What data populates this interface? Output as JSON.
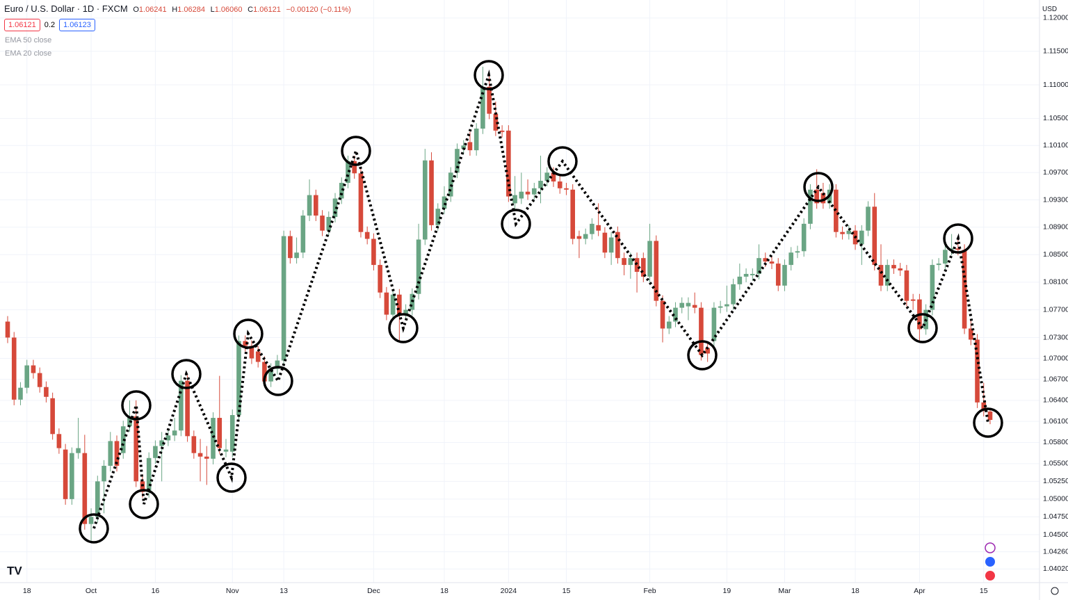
{
  "chart_data": {
    "type": "candlestick",
    "title": "Euro / U.S. Dollar · 1D · FXCM",
    "header_ohlc": [
      {
        "label": "O",
        "value": "1.06241"
      },
      {
        "label": "H",
        "value": "1.06284"
      },
      {
        "label": "L",
        "value": "1.06060"
      },
      {
        "label": "C",
        "value": "1.06121"
      }
    ],
    "change": "−0.00120 (−0.11%)",
    "badges": [
      "1.06121",
      "0.2",
      "1.06123"
    ],
    "indicators": [
      "EMA 50 close",
      "EMA 20 close"
    ],
    "currency": "USD",
    "log_scale": true,
    "grid": true,
    "up_color": "#6aa584",
    "down_color": "#d6493a",
    "ylim": [
      1.0383,
      1.1227
    ],
    "yticks": [
      {
        "value": 1.0402,
        "label": "1.04020"
      },
      {
        "value": 1.0426,
        "label": "1.04260"
      },
      {
        "value": 1.045,
        "label": "1.04500"
      },
      {
        "value": 1.0475,
        "label": "1.04750"
      },
      {
        "value": 1.05,
        "label": "1.05000"
      },
      {
        "value": 1.0525,
        "label": "1.05250"
      },
      {
        "value": 1.055,
        "label": "1.05500"
      },
      {
        "value": 1.058,
        "label": "1.05800"
      },
      {
        "value": 1.061,
        "label": "1.06100"
      },
      {
        "value": 1.064,
        "label": "1.06400"
      },
      {
        "value": 1.067,
        "label": "1.06700"
      },
      {
        "value": 1.07,
        "label": "1.07000"
      },
      {
        "value": 1.073,
        "label": "1.07300"
      },
      {
        "value": 1.077,
        "label": "1.07700"
      },
      {
        "value": 1.081,
        "label": "1.08100"
      },
      {
        "value": 1.085,
        "label": "1.08500"
      },
      {
        "value": 1.089,
        "label": "1.08900"
      },
      {
        "value": 1.093,
        "label": "1.09300"
      },
      {
        "value": 1.097,
        "label": "1.09700"
      },
      {
        "value": 1.101,
        "label": "1.10100"
      },
      {
        "value": 1.105,
        "label": "1.10500"
      },
      {
        "value": 1.11,
        "label": "1.11000"
      },
      {
        "value": 1.115,
        "label": "1.11500"
      },
      {
        "value": 1.12,
        "label": "1.12000"
      }
    ],
    "categories": [
      null,
      null,
      null,
      "18",
      null,
      null,
      null,
      null,
      null,
      null,
      null,
      null,
      null,
      "Oct",
      null,
      null,
      null,
      null,
      null,
      null,
      null,
      null,
      null,
      "16",
      null,
      null,
      null,
      null,
      null,
      null,
      null,
      null,
      null,
      null,
      null,
      "Nov",
      null,
      null,
      null,
      null,
      null,
      null,
      null,
      "13",
      null,
      null,
      null,
      null,
      null,
      null,
      null,
      null,
      null,
      null,
      null,
      null,
      null,
      "Dec",
      null,
      null,
      null,
      null,
      null,
      null,
      null,
      null,
      null,
      null,
      "18",
      null,
      null,
      null,
      null,
      null,
      null,
      null,
      null,
      null,
      "2024",
      null,
      null,
      null,
      null,
      null,
      null,
      null,
      null,
      "15",
      null,
      null,
      null,
      null,
      null,
      null,
      null,
      null,
      null,
      null,
      null,
      null,
      "Feb",
      null,
      null,
      null,
      null,
      null,
      null,
      null,
      null,
      null,
      null,
      null,
      "19",
      null,
      null,
      null,
      null,
      null,
      null,
      null,
      null,
      "Mar",
      null,
      null,
      null,
      null,
      null,
      null,
      null,
      null,
      null,
      null,
      "18",
      null,
      null,
      null,
      null,
      null,
      null,
      null,
      null,
      null,
      "Apr",
      null,
      null,
      null,
      null,
      null,
      null,
      null,
      null,
      null,
      "15",
      null
    ],
    "open": [
      1.0753,
      1.073,
      1.0641,
      1.0658,
      1.069,
      1.0679,
      1.0659,
      1.0643,
      1.0592,
      1.057,
      1.05,
      1.0565,
      1.0565,
      1.0465,
      1.0475,
      1.0525,
      1.0547,
      1.0582,
      1.0565,
      1.0603,
      1.0617,
      1.0525,
      1.051,
      1.0558,
      1.0575,
      1.0583,
      1.059,
      1.0597,
      1.0668,
      1.0589,
      1.0565,
      1.056,
      1.0557,
      1.0615,
      1.0567,
      1.0567,
      1.0619,
      1.0725,
      1.0718,
      1.071,
      1.0695,
      1.0667,
      1.0685,
      1.0697,
      1.0877,
      1.0845,
      1.0853,
      1.0907,
      1.0937,
      1.0907,
      1.0885,
      1.0905,
      1.0932,
      1.0955,
      1.0987,
      1.0969,
      1.0883,
      1.0873,
      1.0835,
      1.0795,
      1.0763,
      1.0792,
      1.0763,
      1.077,
      1.0793,
      1.0872,
      1.0988,
      1.0893,
      1.0917,
      1.0935,
      1.097,
      1.1005,
      1.1015,
      1.1003,
      1.1035,
      1.1097,
      1.1057,
      1.1032,
      1.1032,
      1.0925,
      1.0932,
      1.0942,
      1.0938,
      1.0947,
      1.0958,
      1.097,
      1.0957,
      1.0947,
      1.0945,
      1.0877,
      1.0873,
      1.088,
      1.0893,
      1.0882,
      1.0853,
      1.0883,
      1.0845,
      1.0835,
      1.0845,
      1.0845,
      1.0818,
      1.087,
      1.0783,
      1.0743,
      1.0753,
      1.0773,
      1.0775,
      1.0777,
      1.0773,
      1.0715,
      1.0725,
      1.0773,
      1.0775,
      1.0778,
      1.0807,
      1.0818,
      1.082,
      1.0822,
      1.0845,
      1.084,
      1.0837,
      1.0805,
      1.0835,
      1.0853,
      1.0855,
      1.0895,
      1.0945,
      1.094,
      1.0925,
      1.0945,
      1.0883,
      1.088,
      1.0885,
      1.0865,
      1.0885,
      1.092,
      1.0835,
      1.0805,
      1.0835,
      1.083,
      1.0827,
      1.0785,
      1.0785,
      1.0742,
      1.077,
      1.0835,
      1.0837,
      1.0857,
      1.0859,
      1.0857,
      1.0743,
      1.0727,
      1.0637,
      1.06241
    ],
    "high": [
      1.0761,
      1.0738,
      1.0666,
      1.0698,
      1.0698,
      1.0687,
      1.0667,
      1.0651,
      1.06,
      1.0578,
      1.0573,
      1.0615,
      1.0591,
      1.0487,
      1.0533,
      1.0555,
      1.0595,
      1.059,
      1.0611,
      1.064,
      1.064,
      1.0535,
      1.0566,
      1.0583,
      1.0595,
      1.0598,
      1.0615,
      1.0676,
      1.0676,
      1.0597,
      1.0585,
      1.0575,
      1.0623,
      1.0675,
      1.0585,
      1.0627,
      1.0733,
      1.0733,
      1.0726,
      1.0718,
      1.0703,
      1.0693,
      1.0705,
      1.0885,
      1.0885,
      1.0875,
      1.0915,
      1.096,
      1.0945,
      1.0915,
      1.0913,
      1.094,
      1.0963,
      1.0995,
      1.0995,
      1.0977,
      1.0891,
      1.0881,
      1.0843,
      1.0803,
      1.08,
      1.08,
      1.0778,
      1.0801,
      1.0895,
      1.1005,
      1.1,
      1.0925,
      1.095,
      1.0978,
      1.1013,
      1.1018,
      1.103,
      1.1043,
      1.1127,
      1.1115,
      1.1075,
      1.104,
      1.104,
      1.0965,
      1.097,
      1.096,
      1.0955,
      1.0995,
      1.0978,
      1.0978,
      1.0965,
      1.0955,
      1.0953,
      1.0885,
      1.0888,
      1.0903,
      1.0925,
      1.089,
      1.0883,
      1.0891,
      1.0853,
      1.0853,
      1.0853,
      1.0853,
      1.0895,
      1.0878,
      1.0791,
      1.0761,
      1.0781,
      1.0788,
      1.0788,
      1.0795,
      1.0781,
      1.0723,
      1.0781,
      1.0783,
      1.0805,
      1.0815,
      1.0837,
      1.083,
      1.083,
      1.0865,
      1.0853,
      1.0848,
      1.0845,
      1.0843,
      1.0861,
      1.0863,
      1.0903,
      1.0953,
      1.0975,
      1.0955,
      1.0953,
      1.0953,
      1.0891,
      1.0893,
      1.0893,
      1.0893,
      1.0928,
      1.094,
      1.0865,
      1.0843,
      1.0843,
      1.0838,
      1.0835,
      1.0793,
      1.0793,
      1.0778,
      1.0843,
      1.0845,
      1.0875,
      1.088,
      1.0875,
      1.0865,
      1.0755,
      1.0735,
      1.0665,
      1.06284
    ],
    "low": [
      1.0722,
      1.0633,
      1.0633,
      1.065,
      1.0671,
      1.0651,
      1.0637,
      1.0584,
      1.0564,
      1.0492,
      1.0492,
      1.0557,
      1.0457,
      1.044,
      1.0467,
      1.048,
      1.0539,
      1.0539,
      1.0557,
      1.0595,
      1.0517,
      1.0502,
      1.0502,
      1.055,
      1.0525,
      1.0575,
      1.0582,
      1.0589,
      1.0581,
      1.0557,
      1.0525,
      1.052,
      1.0549,
      1.0564,
      1.0559,
      1.0559,
      1.0611,
      1.071,
      1.0692,
      1.0687,
      1.0659,
      1.0659,
      1.0677,
      1.0689,
      1.0837,
      1.0837,
      1.0845,
      1.0899,
      1.0899,
      1.0877,
      1.0877,
      1.0897,
      1.0924,
      1.0947,
      1.0961,
      1.0875,
      1.0865,
      1.0827,
      1.0787,
      1.0755,
      1.0755,
      1.0725,
      1.0755,
      1.0762,
      1.0785,
      1.0864,
      1.0885,
      1.0885,
      1.0909,
      1.0927,
      1.0962,
      1.0997,
      1.0995,
      1.0995,
      1.1027,
      1.1049,
      1.1024,
      1.1022,
      1.0927,
      1.0917,
      1.0924,
      1.093,
      1.093,
      1.0925,
      1.095,
      1.0949,
      1.0939,
      1.0937,
      1.0865,
      1.0845,
      1.0865,
      1.0872,
      1.0877,
      1.0845,
      1.0835,
      1.0837,
      1.082,
      1.0815,
      1.0795,
      1.081,
      1.081,
      1.0775,
      1.0723,
      1.0735,
      1.0745,
      1.0765,
      1.0755,
      1.0765,
      1.0697,
      1.0695,
      1.0717,
      1.0765,
      1.0767,
      1.077,
      1.0799,
      1.081,
      1.0812,
      1.0814,
      1.0832,
      1.0829,
      1.0797,
      1.0797,
      1.0827,
      1.0845,
      1.0847,
      1.0887,
      1.0917,
      1.0917,
      1.0917,
      1.0875,
      1.0872,
      1.0872,
      1.0857,
      1.0835,
      1.0877,
      1.0827,
      1.0797,
      1.0797,
      1.0822,
      1.0819,
      1.0775,
      1.077,
      1.0725,
      1.0734,
      1.0762,
      1.0827,
      1.0829,
      1.0849,
      1.0849,
      1.0735,
      1.0719,
      1.0629,
      1.0617,
      1.0606
    ],
    "close": [
      1.073,
      1.0641,
      1.0658,
      1.069,
      1.0679,
      1.0659,
      1.0645,
      1.0592,
      1.0572,
      1.05,
      1.0565,
      1.0572,
      1.0465,
      1.0475,
      1.0525,
      1.0547,
      1.0582,
      1.0547,
      1.0603,
      1.0617,
      1.0525,
      1.051,
      1.0558,
      1.0575,
      1.0583,
      1.059,
      1.0597,
      1.0668,
      1.0589,
      1.0565,
      1.056,
      1.0557,
      1.0615,
      1.0572,
      1.057,
      1.0619,
      1.0725,
      1.0718,
      1.07,
      1.0695,
      1.0667,
      1.0685,
      1.0697,
      1.0877,
      1.0845,
      1.0853,
      1.0907,
      1.0937,
      1.0907,
      1.0885,
      1.0905,
      1.0932,
      1.0955,
      1.0987,
      1.0969,
      1.0883,
      1.0873,
      1.0835,
      1.0795,
      1.0763,
      1.0792,
      1.0763,
      1.077,
      1.0793,
      1.0872,
      1.0988,
      1.0893,
      1.0917,
      1.0935,
      1.097,
      1.1005,
      1.101,
      1.1003,
      1.1035,
      1.1097,
      1.1057,
      1.1032,
      1.103,
      1.0935,
      1.0937,
      1.0942,
      1.0938,
      1.0947,
      1.0958,
      1.097,
      1.0957,
      1.0947,
      1.0945,
      1.0873,
      1.0873,
      1.088,
      1.0895,
      1.0885,
      1.0853,
      1.0875,
      1.0845,
      1.0835,
      1.0845,
      1.0825,
      1.0818,
      1.087,
      1.0783,
      1.0743,
      1.0753,
      1.0773,
      1.078,
      1.078,
      1.0773,
      1.0705,
      1.0707,
      1.0773,
      1.0775,
      1.0778,
      1.0807,
      1.0818,
      1.0822,
      1.0822,
      1.0845,
      1.084,
      1.0837,
      1.0805,
      1.0835,
      1.0853,
      1.0855,
      1.0895,
      1.0945,
      1.0925,
      1.0925,
      1.0945,
      1.0883,
      1.088,
      1.0885,
      1.0865,
      1.0885,
      1.092,
      1.0835,
      1.0805,
      1.0835,
      1.083,
      1.0827,
      1.0783,
      1.0783,
      1.0742,
      1.077,
      1.0835,
      1.0837,
      1.0857,
      1.0859,
      1.0857,
      1.0743,
      1.0727,
      1.0637,
      1.0625,
      1.06121
    ]
  }
}
